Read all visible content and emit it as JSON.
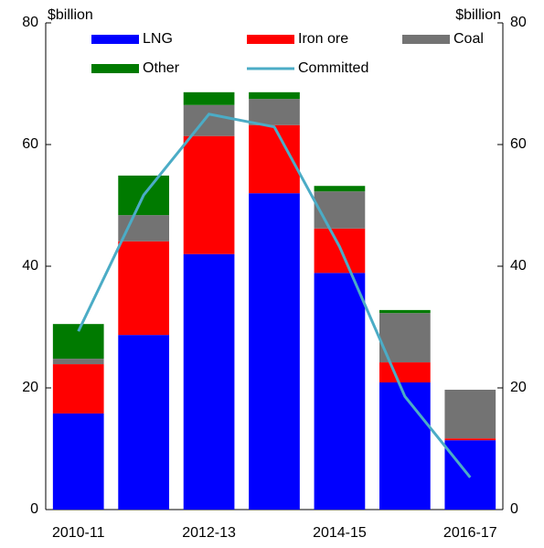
{
  "chart_data": {
    "type": "bar",
    "stacked": true,
    "y_label": "$billion",
    "y2_label": "$billion",
    "categories": [
      "2010-11",
      null,
      "2012-13",
      null,
      "2014-15",
      null,
      "2016-17"
    ],
    "series": [
      {
        "name": "LNG",
        "color": "#0000ff",
        "values": [
          15.8,
          28.7,
          42.0,
          52.0,
          38.9,
          20.9,
          11.4
        ]
      },
      {
        "name": "Iron ore",
        "color": "#ff0000",
        "values": [
          8.1,
          15.4,
          19.4,
          11.2,
          7.3,
          3.3,
          0.3
        ]
      },
      {
        "name": "Coal",
        "color": "#737373",
        "values": [
          0.9,
          4.3,
          5.1,
          4.3,
          6.1,
          8.1,
          8.0
        ]
      },
      {
        "name": "Other",
        "color": "#007a00",
        "values": [
          5.7,
          6.5,
          2.1,
          1.1,
          0.9,
          0.5,
          0
        ]
      },
      {
        "name": "Committed",
        "type": "line",
        "color": "#4bacc6",
        "values": [
          29.3,
          51.7,
          65.0,
          62.9,
          43.2,
          18.6,
          5.3
        ]
      }
    ],
    "ylim": [
      0,
      80
    ],
    "yticks": [
      0,
      20,
      40,
      60,
      80
    ],
    "y2lim": [
      0,
      80
    ],
    "y2ticks": [
      0,
      20,
      40,
      60,
      80
    ],
    "legend": "top"
  }
}
